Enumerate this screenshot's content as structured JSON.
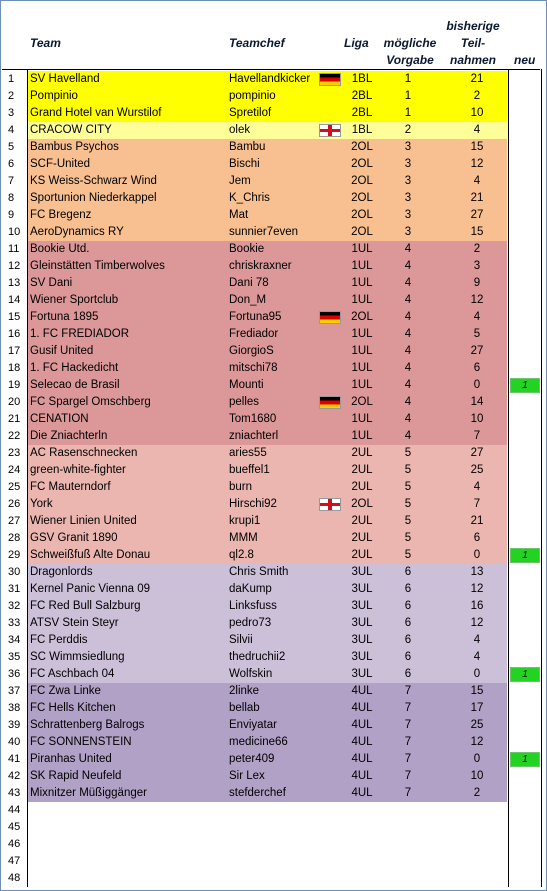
{
  "colors": {
    "bl": "#ffff00",
    "cracow": "#ffff9a",
    "ol": "#f8c090",
    "ul1": "#dc9898",
    "ul2": "#ebb6b0",
    "ul3": "#ccc0d9",
    "ul4": "#b2a1c7",
    "neu": "#22d322"
  },
  "headers": {
    "team": "Team",
    "teamchef": "Teamchef",
    "liga": "Liga",
    "vorgabe_1": "mögliche",
    "vorgabe_2": "Vorgabe",
    "teil_1": "bisherige",
    "teil_2": "Teil-",
    "teil_3": "nahmen",
    "neu": "neu"
  },
  "rows": [
    {
      "n": "1",
      "team": "SV Havelland",
      "chef": "Havellandkicker",
      "flag": "de-flag-icon",
      "liga": "1BL",
      "vorgabe": "1",
      "teil": "21",
      "neu": "",
      "group": "bl"
    },
    {
      "n": "2",
      "team": "Pompinio",
      "chef": "pompinio",
      "flag": "",
      "liga": "2BL",
      "vorgabe": "1",
      "teil": "2",
      "neu": "",
      "group": "bl"
    },
    {
      "n": "3",
      "team": "Grand Hotel van Wurstilof",
      "chef": "Spretilof",
      "flag": "",
      "liga": "2BL",
      "vorgabe": "1",
      "teil": "10",
      "neu": "",
      "group": "bl"
    },
    {
      "n": "4",
      "team": "CRACOW CITY",
      "chef": "olek",
      "flag": "en-flag-icon",
      "liga": "1BL",
      "vorgabe": "2",
      "teil": "4",
      "neu": "",
      "group": "cracow"
    },
    {
      "n": "5",
      "team": "Bambus Psychos",
      "chef": "Bambu",
      "flag": "",
      "liga": "2OL",
      "vorgabe": "3",
      "teil": "15",
      "neu": "",
      "group": "ol"
    },
    {
      "n": "6",
      "team": "SCF-United",
      "chef": "Bischi",
      "flag": "",
      "liga": "2OL",
      "vorgabe": "3",
      "teil": "12",
      "neu": "",
      "group": "ol"
    },
    {
      "n": "7",
      "team": "KS Weiss-Schwarz Wind",
      "chef": "Jem",
      "flag": "",
      "liga": "2OL",
      "vorgabe": "3",
      "teil": "4",
      "neu": "",
      "group": "ol"
    },
    {
      "n": "8",
      "team": "Sportunion Niederkappel",
      "chef": "K_Chris",
      "flag": "",
      "liga": "2OL",
      "vorgabe": "3",
      "teil": "21",
      "neu": "",
      "group": "ol"
    },
    {
      "n": "9",
      "team": "FC Bregenz",
      "chef": "Mat",
      "flag": "",
      "liga": "2OL",
      "vorgabe": "3",
      "teil": "27",
      "neu": "",
      "group": "ol"
    },
    {
      "n": "10",
      "team": "AeroDynamics RY",
      "chef": "sunnier7even",
      "flag": "",
      "liga": "2OL",
      "vorgabe": "3",
      "teil": "15",
      "neu": "",
      "group": "ol"
    },
    {
      "n": "11",
      "team": "Bookie Utd.",
      "chef": "Bookie",
      "flag": "",
      "liga": "1UL",
      "vorgabe": "4",
      "teil": "2",
      "neu": "",
      "group": "ul1"
    },
    {
      "n": "12",
      "team": "Gleinstätten Timberwolves",
      "chef": "chriskraxner",
      "flag": "",
      "liga": "1UL",
      "vorgabe": "4",
      "teil": "3",
      "neu": "",
      "group": "ul1"
    },
    {
      "n": "13",
      "team": "SV Dani",
      "chef": "Dani 78",
      "flag": "",
      "liga": "1UL",
      "vorgabe": "4",
      "teil": "9",
      "neu": "",
      "group": "ul1"
    },
    {
      "n": "14",
      "team": "Wiener Sportclub",
      "chef": "Don_M",
      "flag": "",
      "liga": "1UL",
      "vorgabe": "4",
      "teil": "12",
      "neu": "",
      "group": "ul1"
    },
    {
      "n": "15",
      "team": "Fortuna 1895",
      "chef": "Fortuna95",
      "flag": "de-flag-icon",
      "liga": "2OL",
      "vorgabe": "4",
      "teil": "4",
      "neu": "",
      "group": "ul1"
    },
    {
      "n": "16",
      "team": "1. FC FREDIADOR",
      "chef": "Frediador",
      "flag": "",
      "liga": "1UL",
      "vorgabe": "4",
      "teil": "5",
      "neu": "",
      "group": "ul1"
    },
    {
      "n": "17",
      "team": "Gusif United",
      "chef": "GiorgioS",
      "flag": "",
      "liga": "1UL",
      "vorgabe": "4",
      "teil": "27",
      "neu": "",
      "group": "ul1"
    },
    {
      "n": "18",
      "team": "1. FC Hackedicht",
      "chef": "mitschi78",
      "flag": "",
      "liga": "1UL",
      "vorgabe": "4",
      "teil": "6",
      "neu": "",
      "group": "ul1"
    },
    {
      "n": "19",
      "team": "Selecao de Brasil",
      "chef": "Mounti",
      "flag": "",
      "liga": "1UL",
      "vorgabe": "4",
      "teil": "0",
      "neu": "1",
      "group": "ul1"
    },
    {
      "n": "20",
      "team": "FC Spargel Omschberg",
      "chef": "pelles",
      "flag": "de-flag-icon",
      "liga": "2OL",
      "vorgabe": "4",
      "teil": "14",
      "neu": "",
      "group": "ul1"
    },
    {
      "n": "21",
      "team": "CENATION",
      "chef": "Tom1680",
      "flag": "",
      "liga": "1UL",
      "vorgabe": "4",
      "teil": "10",
      "neu": "",
      "group": "ul1"
    },
    {
      "n": "22",
      "team": "Die Zniachterln",
      "chef": "zniachterl",
      "flag": "",
      "liga": "1UL",
      "vorgabe": "4",
      "teil": "7",
      "neu": "",
      "group": "ul1"
    },
    {
      "n": "23",
      "team": "AC Rasenschnecken",
      "chef": "aries55",
      "flag": "",
      "liga": "2UL",
      "vorgabe": "5",
      "teil": "27",
      "neu": "",
      "group": "ul2"
    },
    {
      "n": "24",
      "team": "green-white-fighter",
      "chef": "bueffel1",
      "flag": "",
      "liga": "2UL",
      "vorgabe": "5",
      "teil": "25",
      "neu": "",
      "group": "ul2"
    },
    {
      "n": "25",
      "team": "FC Mauterndorf",
      "chef": "burn",
      "flag": "",
      "liga": "2UL",
      "vorgabe": "5",
      "teil": "4",
      "neu": "",
      "group": "ul2"
    },
    {
      "n": "26",
      "team": "York",
      "chef": "Hirschi92",
      "flag": "en-flag-icon",
      "liga": "2OL",
      "vorgabe": "5",
      "teil": "7",
      "neu": "",
      "group": "ul2"
    },
    {
      "n": "27",
      "team": "Wiener Linien United",
      "chef": "krupi1",
      "flag": "",
      "liga": "2UL",
      "vorgabe": "5",
      "teil": "21",
      "neu": "",
      "group": "ul2"
    },
    {
      "n": "28",
      "team": "GSV Granit 1890",
      "chef": "MMM",
      "flag": "",
      "liga": "2UL",
      "vorgabe": "5",
      "teil": "6",
      "neu": "",
      "group": "ul2"
    },
    {
      "n": "29",
      "team": "Schweißfuß Alte Donau",
      "chef": "ql2.8",
      "flag": "",
      "liga": "2UL",
      "vorgabe": "5",
      "teil": "0",
      "neu": "1",
      "group": "ul2"
    },
    {
      "n": "30",
      "team": "Dragonlords",
      "chef": "Chris Smith",
      "flag": "",
      "liga": "3UL",
      "vorgabe": "6",
      "teil": "13",
      "neu": "",
      "group": "ul3"
    },
    {
      "n": "31",
      "team": "Kernel Panic Vienna 09",
      "chef": "daKump",
      "flag": "",
      "liga": "3UL",
      "vorgabe": "6",
      "teil": "12",
      "neu": "",
      "group": "ul3"
    },
    {
      "n": "32",
      "team": "FC Red Bull Salzburg",
      "chef": "Linksfuss",
      "flag": "",
      "liga": "3UL",
      "vorgabe": "6",
      "teil": "16",
      "neu": "",
      "group": "ul3"
    },
    {
      "n": "33",
      "team": "ATSV Stein Steyr",
      "chef": "pedro73",
      "flag": "",
      "liga": "3UL",
      "vorgabe": "6",
      "teil": "12",
      "neu": "",
      "group": "ul3"
    },
    {
      "n": "34",
      "team": "FC Perddis",
      "chef": "Silvii",
      "flag": "",
      "liga": "3UL",
      "vorgabe": "6",
      "teil": "4",
      "neu": "",
      "group": "ul3"
    },
    {
      "n": "35",
      "team": "SC Wimmsiedlung",
      "chef": "thedruchii2",
      "flag": "",
      "liga": "3UL",
      "vorgabe": "6",
      "teil": "4",
      "neu": "",
      "group": "ul3"
    },
    {
      "n": "36",
      "team": "FC Aschbach 04",
      "chef": "Wolfskin",
      "flag": "",
      "liga": "3UL",
      "vorgabe": "6",
      "teil": "0",
      "neu": "1",
      "group": "ul3"
    },
    {
      "n": "37",
      "team": "FC Zwa Linke",
      "chef": "2linke",
      "flag": "",
      "liga": "4UL",
      "vorgabe": "7",
      "teil": "15",
      "neu": "",
      "group": "ul4"
    },
    {
      "n": "38",
      "team": "FC Hells Kitchen",
      "chef": "bellab",
      "flag": "",
      "liga": "4UL",
      "vorgabe": "7",
      "teil": "17",
      "neu": "",
      "group": "ul4"
    },
    {
      "n": "39",
      "team": "Schrattenberg Balrogs",
      "chef": "Enviyatar",
      "flag": "",
      "liga": "4UL",
      "vorgabe": "7",
      "teil": "25",
      "neu": "",
      "group": "ul4"
    },
    {
      "n": "40",
      "team": "FC SONNENSTEIN",
      "chef": "medicine66",
      "flag": "",
      "liga": "4UL",
      "vorgabe": "7",
      "teil": "12",
      "neu": "",
      "group": "ul4"
    },
    {
      "n": "41",
      "team": "Piranhas United",
      "chef": "peter409",
      "flag": "",
      "liga": "4UL",
      "vorgabe": "7",
      "teil": "0",
      "neu": "1",
      "group": "ul4"
    },
    {
      "n": "42",
      "team": "SK Rapid Neufeld",
      "chef": "Sir Lex",
      "flag": "",
      "liga": "4UL",
      "vorgabe": "7",
      "teil": "10",
      "neu": "",
      "group": "ul4"
    },
    {
      "n": "43",
      "team": "Mixnitzer Müßiggänger",
      "chef": "stefderchef",
      "flag": "",
      "liga": "4UL",
      "vorgabe": "7",
      "teil": "2",
      "neu": "",
      "group": "ul4"
    },
    {
      "n": "44",
      "team": "",
      "chef": "",
      "flag": "",
      "liga": "",
      "vorgabe": "",
      "teil": "",
      "neu": "",
      "group": ""
    },
    {
      "n": "45",
      "team": "",
      "chef": "",
      "flag": "",
      "liga": "",
      "vorgabe": "",
      "teil": "",
      "neu": "",
      "group": ""
    },
    {
      "n": "46",
      "team": "",
      "chef": "",
      "flag": "",
      "liga": "",
      "vorgabe": "",
      "teil": "",
      "neu": "",
      "group": ""
    },
    {
      "n": "47",
      "team": "",
      "chef": "",
      "flag": "",
      "liga": "",
      "vorgabe": "",
      "teil": "",
      "neu": "",
      "group": ""
    },
    {
      "n": "48",
      "team": "",
      "chef": "",
      "flag": "",
      "liga": "",
      "vorgabe": "",
      "teil": "",
      "neu": "",
      "group": ""
    }
  ]
}
